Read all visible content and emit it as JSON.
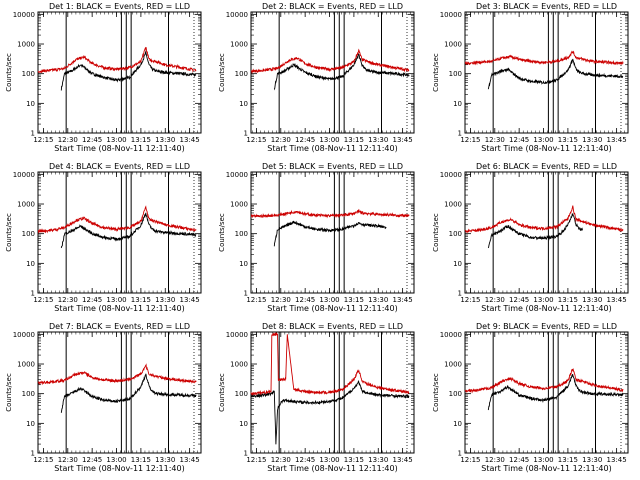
{
  "chart_data": [
    {
      "type": "line",
      "title": "Det 1: BLACK = Events, RED = LLD",
      "xlabel": "Start Time (08-Nov-11 12:11:40)",
      "ylabel": "Counts/sec",
      "yscale": "log",
      "ylim": [
        1,
        12000
      ],
      "xlim": [
        "12:11:40",
        "13:52"
      ],
      "x_ticks": [
        "12:15",
        "12:30",
        "12:45",
        "13:00",
        "13:15",
        "13:30",
        "13:45"
      ],
      "y_ticks": [
        "1",
        "10",
        "100",
        "1000",
        "10000"
      ],
      "vertical_lines": [
        "12:29",
        "13:03",
        "13:06",
        "13:09",
        "13:32"
      ],
      "series": [
        {
          "name": "Events",
          "color": "#000000",
          "x": [
            "12:26",
            "12:28",
            "12:32",
            "12:38",
            "12:45",
            "12:52",
            "13:00",
            "13:08",
            "13:15",
            "13:18",
            "13:20",
            "13:22",
            "13:25",
            "13:30",
            "13:40",
            "13:49"
          ],
          "y": [
            30,
            100,
            120,
            200,
            100,
            75,
            60,
            75,
            200,
            500,
            200,
            140,
            120,
            110,
            100,
            90
          ]
        },
        {
          "name": "LLD",
          "color": "#cc0000",
          "x": [
            "12:11:40",
            "12:20",
            "12:28",
            "12:35",
            "12:40",
            "12:45",
            "12:52",
            "13:00",
            "13:08",
            "13:15",
            "13:18",
            "13:20",
            "13:25",
            "13:30",
            "13:40",
            "13:49"
          ],
          "y": [
            120,
            130,
            150,
            300,
            360,
            220,
            160,
            140,
            160,
            250,
            800,
            300,
            250,
            200,
            160,
            130
          ]
        }
      ]
    },
    {
      "type": "line",
      "title": "Det 2: BLACK = Events, RED = LLD",
      "xlabel": "Start Time (08-Nov-11 12:11:40)",
      "ylabel": "Counts/sec",
      "yscale": "log",
      "ylim": [
        1,
        12000
      ],
      "xlim": [
        "12:11:40",
        "13:52"
      ],
      "x_ticks": [
        "12:15",
        "12:30",
        "12:45",
        "13:00",
        "13:15",
        "13:30",
        "13:45"
      ],
      "y_ticks": [
        "1",
        "10",
        "100",
        "1000",
        "10000"
      ],
      "vertical_lines": [
        "12:29",
        "13:03",
        "13:06",
        "13:09",
        "13:32"
      ],
      "series": [
        {
          "name": "Events",
          "color": "#000000",
          "x": [
            "12:26",
            "12:28",
            "12:32",
            "12:38",
            "12:45",
            "12:52",
            "13:00",
            "13:08",
            "13:15",
            "13:18",
            "13:20",
            "13:22",
            "13:25",
            "13:30",
            "13:40",
            "13:49"
          ],
          "y": [
            30,
            100,
            120,
            200,
            110,
            80,
            65,
            80,
            200,
            450,
            200,
            140,
            120,
            110,
            100,
            90
          ]
        },
        {
          "name": "LLD",
          "color": "#cc0000",
          "x": [
            "12:11:40",
            "12:20",
            "12:28",
            "12:35",
            "12:40",
            "12:45",
            "12:52",
            "13:00",
            "13:08",
            "13:15",
            "13:18",
            "13:20",
            "13:25",
            "13:30",
            "13:40",
            "13:49"
          ],
          "y": [
            120,
            130,
            150,
            280,
            340,
            220,
            160,
            140,
            160,
            250,
            600,
            300,
            240,
            200,
            160,
            130
          ]
        }
      ]
    },
    {
      "type": "line",
      "title": "Det 3: BLACK = Events, RED = LLD",
      "xlabel": "Start Time (08-Nov-11 12:11:40)",
      "ylabel": "Counts/sec",
      "yscale": "log",
      "ylim": [
        1,
        12000
      ],
      "xlim": [
        "12:11:40",
        "13:52"
      ],
      "x_ticks": [
        "12:15",
        "12:30",
        "12:45",
        "13:00",
        "13:15",
        "13:30",
        "13:45"
      ],
      "y_ticks": [
        "1",
        "10",
        "100",
        "1000",
        "10000"
      ],
      "vertical_lines": [
        "12:29",
        "13:03",
        "13:06",
        "13:09",
        "13:32"
      ],
      "series": [
        {
          "name": "Events",
          "color": "#000000",
          "x": [
            "12:26",
            "12:28",
            "12:32",
            "12:38",
            "12:45",
            "12:52",
            "13:00",
            "13:08",
            "13:15",
            "13:18",
            "13:20",
            "13:22",
            "13:25",
            "13:30",
            "13:40",
            "13:49"
          ],
          "y": [
            30,
            90,
            110,
            140,
            70,
            55,
            50,
            60,
            130,
            300,
            140,
            110,
            100,
            90,
            85,
            80
          ]
        },
        {
          "name": "LLD",
          "color": "#cc0000",
          "x": [
            "12:11:40",
            "12:20",
            "12:28",
            "12:35",
            "12:40",
            "12:45",
            "12:52",
            "13:00",
            "13:08",
            "13:15",
            "13:18",
            "13:20",
            "13:25",
            "13:30",
            "13:40",
            "13:49"
          ],
          "y": [
            220,
            240,
            260,
            340,
            370,
            300,
            260,
            240,
            260,
            350,
            550,
            350,
            300,
            260,
            240,
            220
          ]
        }
      ]
    },
    {
      "type": "line",
      "title": "Det 4: BLACK = Events, RED = LLD",
      "xlabel": "Start Time (08-Nov-11 12:11:40)",
      "ylabel": "Counts/sec",
      "yscale": "log",
      "ylim": [
        1,
        12000
      ],
      "xlim": [
        "12:11:40",
        "13:52"
      ],
      "x_ticks": [
        "12:15",
        "12:30",
        "12:45",
        "13:00",
        "13:15",
        "13:30",
        "13:45"
      ],
      "y_ticks": [
        "1",
        "10",
        "100",
        "1000",
        "10000"
      ],
      "vertical_lines": [
        "12:29",
        "13:03",
        "13:06",
        "13:09",
        "13:32"
      ],
      "series": [
        {
          "name": "Events",
          "color": "#000000",
          "x": [
            "12:26",
            "12:28",
            "12:32",
            "12:38",
            "12:45",
            "12:52",
            "13:00",
            "13:08",
            "13:15",
            "13:18",
            "13:20",
            "13:22",
            "13:25",
            "13:30",
            "13:40",
            "13:49"
          ],
          "y": [
            30,
            100,
            120,
            180,
            100,
            75,
            65,
            80,
            190,
            500,
            200,
            140,
            120,
            110,
            100,
            90
          ]
        },
        {
          "name": "LLD",
          "color": "#cc0000",
          "x": [
            "12:11:40",
            "12:20",
            "12:28",
            "12:35",
            "12:40",
            "12:45",
            "12:52",
            "13:00",
            "13:08",
            "13:15",
            "13:18",
            "13:20",
            "13:25",
            "13:30",
            "13:40",
            "13:49"
          ],
          "y": [
            120,
            130,
            160,
            280,
            330,
            220,
            160,
            140,
            160,
            260,
            800,
            300,
            250,
            200,
            160,
            130
          ]
        }
      ]
    },
    {
      "type": "line",
      "title": "Det 5: BLACK = Events, RED = LLD",
      "xlabel": "Start Time (08-Nov-11 12:11:40)",
      "ylabel": "Counts/sec",
      "yscale": "log",
      "ylim": [
        1,
        12000
      ],
      "xlim": [
        "12:11:40",
        "13:52"
      ],
      "x_ticks": [
        "12:15",
        "12:30",
        "12:45",
        "13:00",
        "13:15",
        "13:30",
        "13:45"
      ],
      "y_ticks": [
        "1",
        "10",
        "100",
        "1000",
        "10000"
      ],
      "vertical_lines": [
        "12:29",
        "13:03",
        "13:06",
        "13:09"
      ],
      "series": [
        {
          "name": "Events",
          "color": "#000000",
          "x": [
            "12:26",
            "12:28",
            "12:32",
            "12:38",
            "12:45",
            "12:52",
            "13:00",
            "13:08",
            "13:15",
            "13:18",
            "13:20",
            "13:22",
            "13:25",
            "13:30",
            "13:35"
          ],
          "y": [
            40,
            140,
            170,
            250,
            170,
            140,
            130,
            140,
            190,
            230,
            210,
            200,
            190,
            180,
            160
          ]
        },
        {
          "name": "LLD",
          "color": "#cc0000",
          "x": [
            "12:11:40",
            "12:20",
            "12:28",
            "12:35",
            "12:40",
            "12:45",
            "12:52",
            "13:00",
            "13:08",
            "13:15",
            "13:18",
            "13:20",
            "13:25",
            "13:30",
            "13:40",
            "13:49"
          ],
          "y": [
            380,
            400,
            420,
            500,
            560,
            460,
            420,
            400,
            420,
            480,
            560,
            500,
            470,
            450,
            420,
            400
          ]
        }
      ]
    },
    {
      "type": "line",
      "title": "Det 6: BLACK = Events, RED = LLD",
      "xlabel": "Start Time (08-Nov-11 12:11:40)",
      "ylabel": "Counts/sec",
      "yscale": "log",
      "ylim": [
        1,
        12000
      ],
      "xlim": [
        "12:11:40",
        "13:52"
      ],
      "x_ticks": [
        "12:15",
        "12:30",
        "12:45",
        "13:00",
        "13:15",
        "13:30",
        "13:45"
      ],
      "y_ticks": [
        "1",
        "10",
        "100",
        "1000",
        "10000"
      ],
      "vertical_lines": [
        "12:29",
        "13:03",
        "13:06",
        "13:09",
        "13:32"
      ],
      "series": [
        {
          "name": "Events",
          "color": "#000000",
          "x": [
            "12:26",
            "12:28",
            "12:32",
            "12:38",
            "12:45",
            "12:52",
            "13:00",
            "13:08",
            "13:12",
            "13:15",
            "13:17",
            "13:18",
            "13:20",
            "13:22",
            "13:24"
          ],
          "y": [
            30,
            90,
            110,
            180,
            100,
            75,
            70,
            80,
            120,
            200,
            350,
            500,
            200,
            150,
            130
          ]
        },
        {
          "name": "LLD",
          "color": "#cc0000",
          "x": [
            "12:11:40",
            "12:20",
            "12:28",
            "12:35",
            "12:40",
            "12:45",
            "12:52",
            "13:00",
            "13:08",
            "13:15",
            "13:18",
            "13:20",
            "13:25",
            "13:30",
            "13:40",
            "13:49"
          ],
          "y": [
            120,
            130,
            160,
            260,
            300,
            200,
            160,
            150,
            170,
            320,
            800,
            300,
            250,
            200,
            160,
            130
          ]
        }
      ]
    },
    {
      "type": "line",
      "title": "Det 7: BLACK = Events, RED = LLD",
      "xlabel": "Start Time (08-Nov-11 12:11:40)",
      "ylabel": "Counts/sec",
      "yscale": "log",
      "ylim": [
        1,
        12000
      ],
      "xlim": [
        "12:11:40",
        "13:52"
      ],
      "x_ticks": [
        "12:15",
        "12:30",
        "12:45",
        "13:00",
        "13:15",
        "13:30",
        "13:45"
      ],
      "y_ticks": [
        "1",
        "10",
        "100",
        "1000",
        "10000"
      ],
      "vertical_lines": [
        "12:29",
        "13:03",
        "13:06",
        "13:09",
        "13:32"
      ],
      "series": [
        {
          "name": "Events",
          "color": "#000000",
          "x": [
            "12:26",
            "12:28",
            "12:32",
            "12:38",
            "12:45",
            "12:52",
            "13:00",
            "13:08",
            "13:15",
            "13:18",
            "13:20",
            "13:22",
            "13:25",
            "13:30",
            "13:40",
            "13:49"
          ],
          "y": [
            25,
            80,
            100,
            150,
            80,
            60,
            55,
            65,
            170,
            450,
            180,
            120,
            100,
            95,
            90,
            85
          ]
        },
        {
          "name": "LLD",
          "color": "#cc0000",
          "x": [
            "12:11:40",
            "12:20",
            "12:28",
            "12:35",
            "12:40",
            "12:45",
            "12:52",
            "13:00",
            "13:08",
            "13:15",
            "13:18",
            "13:20",
            "13:25",
            "13:30",
            "13:40",
            "13:49"
          ],
          "y": [
            230,
            250,
            280,
            450,
            520,
            350,
            290,
            270,
            300,
            450,
            900,
            450,
            380,
            330,
            280,
            250
          ]
        }
      ]
    },
    {
      "type": "line",
      "title": "Det 8: BLACK = Events, RED = LLD",
      "xlabel": "Start Time (08-Nov-11 12:11:40)",
      "ylabel": "Counts/sec",
      "yscale": "log",
      "ylim": [
        1,
        12000
      ],
      "xlim": [
        "12:11:40",
        "13:52"
      ],
      "x_ticks": [
        "12:15",
        "12:30",
        "12:45",
        "13:00",
        "13:15",
        "13:30",
        "13:45"
      ],
      "y_ticks": [
        "1",
        "10",
        "100",
        "1000",
        "10000"
      ],
      "vertical_lines": [
        "12:29",
        "13:03",
        "13:06",
        "13:09",
        "13:32"
      ],
      "series": [
        {
          "name": "Events",
          "color": "#000000",
          "x": [
            "12:11:40",
            "12:20",
            "12:24",
            "12:26",
            "12:27",
            "12:28",
            "12:30",
            "12:32",
            "12:38",
            "12:45",
            "12:52",
            "13:00",
            "13:08",
            "13:15",
            "13:18",
            "13:20",
            "13:25",
            "13:30",
            "13:40",
            "13:49"
          ],
          "y": [
            80,
            90,
            100,
            120,
            2,
            30,
            50,
            60,
            55,
            50,
            50,
            55,
            70,
            150,
            250,
            120,
            100,
            90,
            85,
            80
          ]
        },
        {
          "name": "LLD",
          "color": "#cc0000",
          "x": [
            "12:11:40",
            "12:20",
            "12:24",
            "12:24:30",
            "12:28",
            "12:28:30",
            "12:30",
            "12:33",
            "12:34",
            "12:38",
            "12:45",
            "12:52",
            "13:00",
            "13:08",
            "13:15",
            "13:18",
            "13:20",
            "13:25",
            "13:30",
            "13:40",
            "13:49"
          ],
          "y": [
            100,
            110,
            120,
            10000,
            10000,
            300,
            300,
            300,
            10000,
            140,
            120,
            110,
            110,
            140,
            300,
            650,
            250,
            200,
            160,
            130,
            110
          ]
        }
      ]
    },
    {
      "type": "line",
      "title": "Det 9: BLACK = Events, RED = LLD",
      "xlabel": "Start Time (08-Nov-11 12:11:40)",
      "ylabel": "Counts/sec",
      "yscale": "log",
      "ylim": [
        1,
        12000
      ],
      "xlim": [
        "12:11:40",
        "13:52"
      ],
      "x_ticks": [
        "12:15",
        "12:30",
        "12:45",
        "13:00",
        "13:15",
        "13:30",
        "13:45"
      ],
      "y_ticks": [
        "1",
        "10",
        "100",
        "1000",
        "10000"
      ],
      "vertical_lines": [
        "12:29",
        "13:03",
        "13:06",
        "13:09",
        "13:32"
      ],
      "series": [
        {
          "name": "Events",
          "color": "#000000",
          "x": [
            "12:26",
            "12:28",
            "12:32",
            "12:38",
            "12:45",
            "12:52",
            "13:00",
            "13:08",
            "13:15",
            "13:18",
            "13:20",
            "13:22",
            "13:25",
            "13:30",
            "13:40",
            "13:49"
          ],
          "y": [
            30,
            90,
            110,
            170,
            90,
            70,
            60,
            75,
            180,
            450,
            180,
            130,
            110,
            100,
            95,
            90
          ]
        },
        {
          "name": "LLD",
          "color": "#cc0000",
          "x": [
            "12:11:40",
            "12:20",
            "12:28",
            "12:35",
            "12:40",
            "12:45",
            "12:52",
            "13:00",
            "13:08",
            "13:15",
            "13:18",
            "13:20",
            "13:25",
            "13:30",
            "13:40",
            "13:49"
          ],
          "y": [
            120,
            130,
            160,
            270,
            320,
            220,
            170,
            150,
            170,
            270,
            700,
            300,
            250,
            200,
            160,
            130
          ]
        }
      ]
    }
  ]
}
